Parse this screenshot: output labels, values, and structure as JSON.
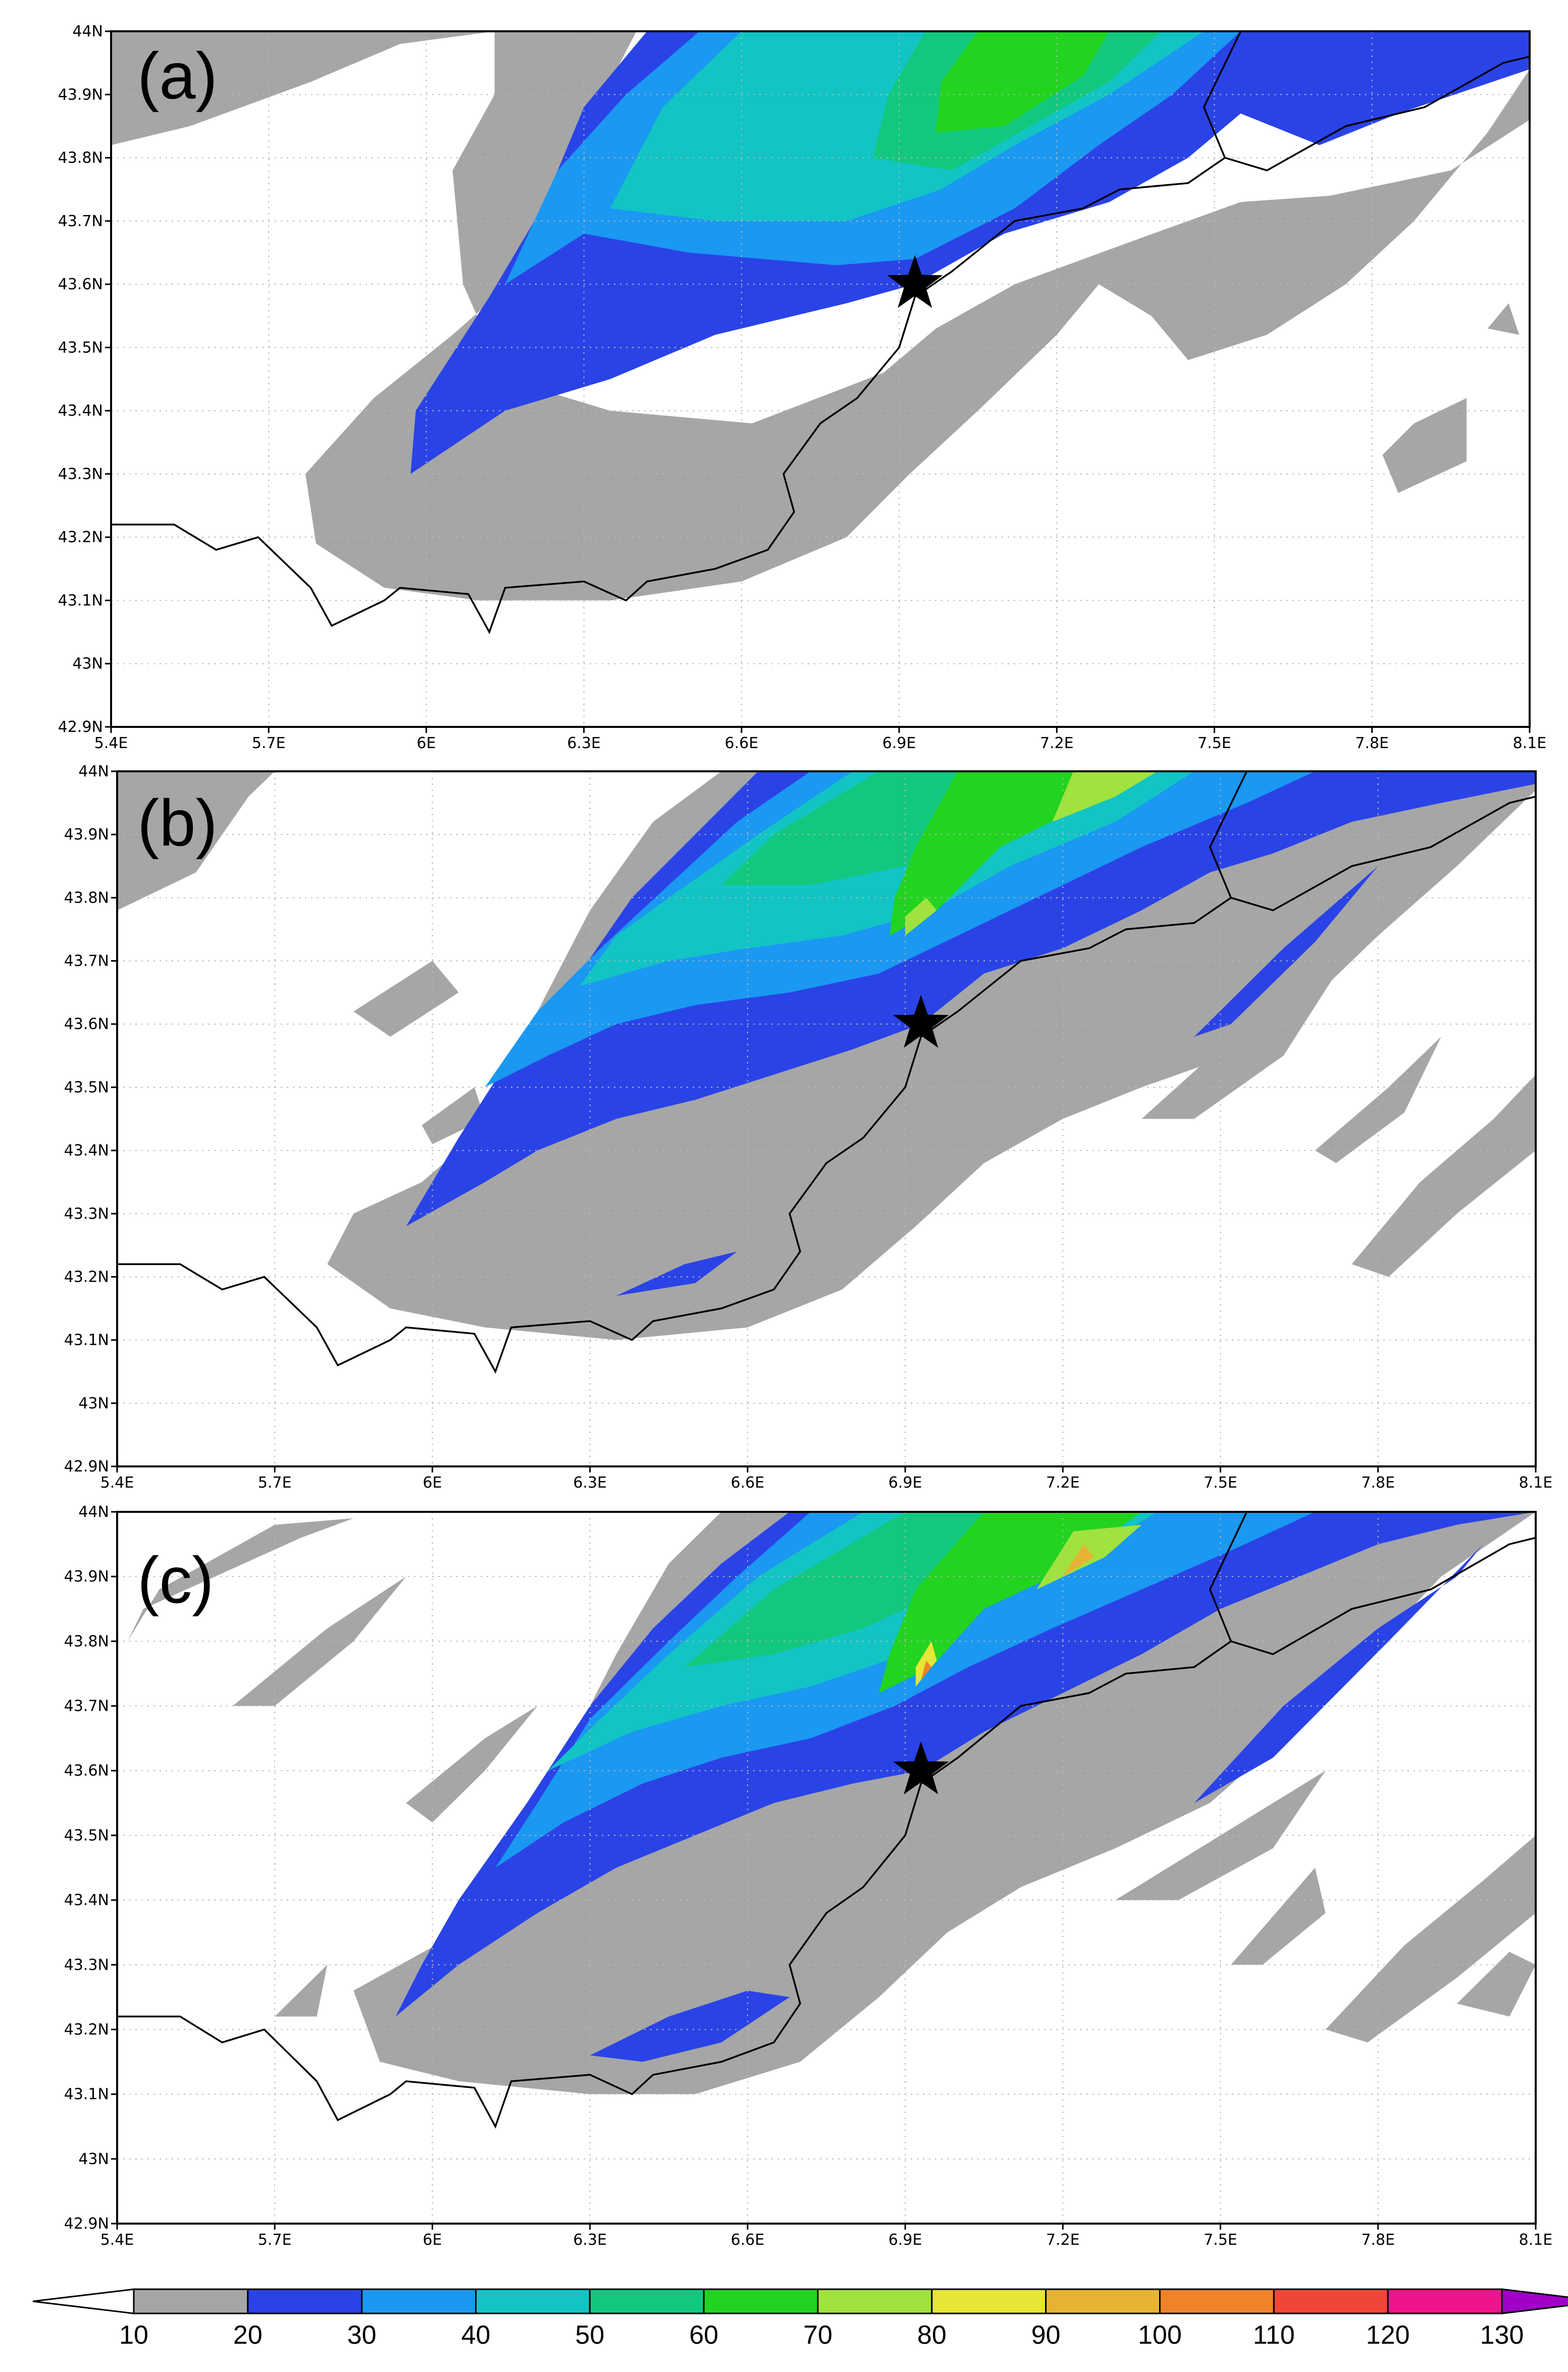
{
  "panels": [
    {
      "id": "a",
      "label": "(a)",
      "show_lon_axis": true
    },
    {
      "id": "b",
      "label": "(b)",
      "show_lon_axis": true
    },
    {
      "id": "c",
      "label": "(c)",
      "show_lon_axis": true
    }
  ],
  "map": {
    "lon_ticks": [
      "5.4E",
      "5.7E",
      "6E",
      "6.3E",
      "6.6E",
      "6.9E",
      "7.2E",
      "7.5E",
      "7.8E",
      "8.1E"
    ],
    "lon_values": [
      5.4,
      5.7,
      6.0,
      6.3,
      6.6,
      6.9,
      7.2,
      7.5,
      7.8,
      8.1
    ],
    "lat_ticks": [
      "44N",
      "43.9N",
      "43.8N",
      "43.7N",
      "43.6N",
      "43.5N",
      "43.4N",
      "43.3N",
      "43.2N",
      "43.1N",
      "43N",
      "42.9N"
    ],
    "lat_values": [
      44.0,
      43.9,
      43.8,
      43.7,
      43.6,
      43.5,
      43.4,
      43.3,
      43.2,
      43.1,
      43.0,
      42.9
    ],
    "lon_range": [
      5.4,
      8.1
    ],
    "lat_range": [
      42.9,
      44.0
    ],
    "grid": "dotted",
    "marker": {
      "symbol": "star",
      "lon": 6.93,
      "lat": 43.6
    }
  },
  "colorbar": {
    "labels": [
      "10",
      "20",
      "30",
      "40",
      "50",
      "60",
      "70",
      "80",
      "90",
      "100",
      "110",
      "120",
      "130"
    ],
    "colors": [
      "#ffffff",
      "#a6a6a6",
      "#2a43e6",
      "#1a98f2",
      "#12c4c4",
      "#12c87e",
      "#22d31f",
      "#a0e23e",
      "#e6e636",
      "#e6b432",
      "#f08228",
      "#f04638",
      "#f0148c",
      "#a000c8"
    ]
  }
}
